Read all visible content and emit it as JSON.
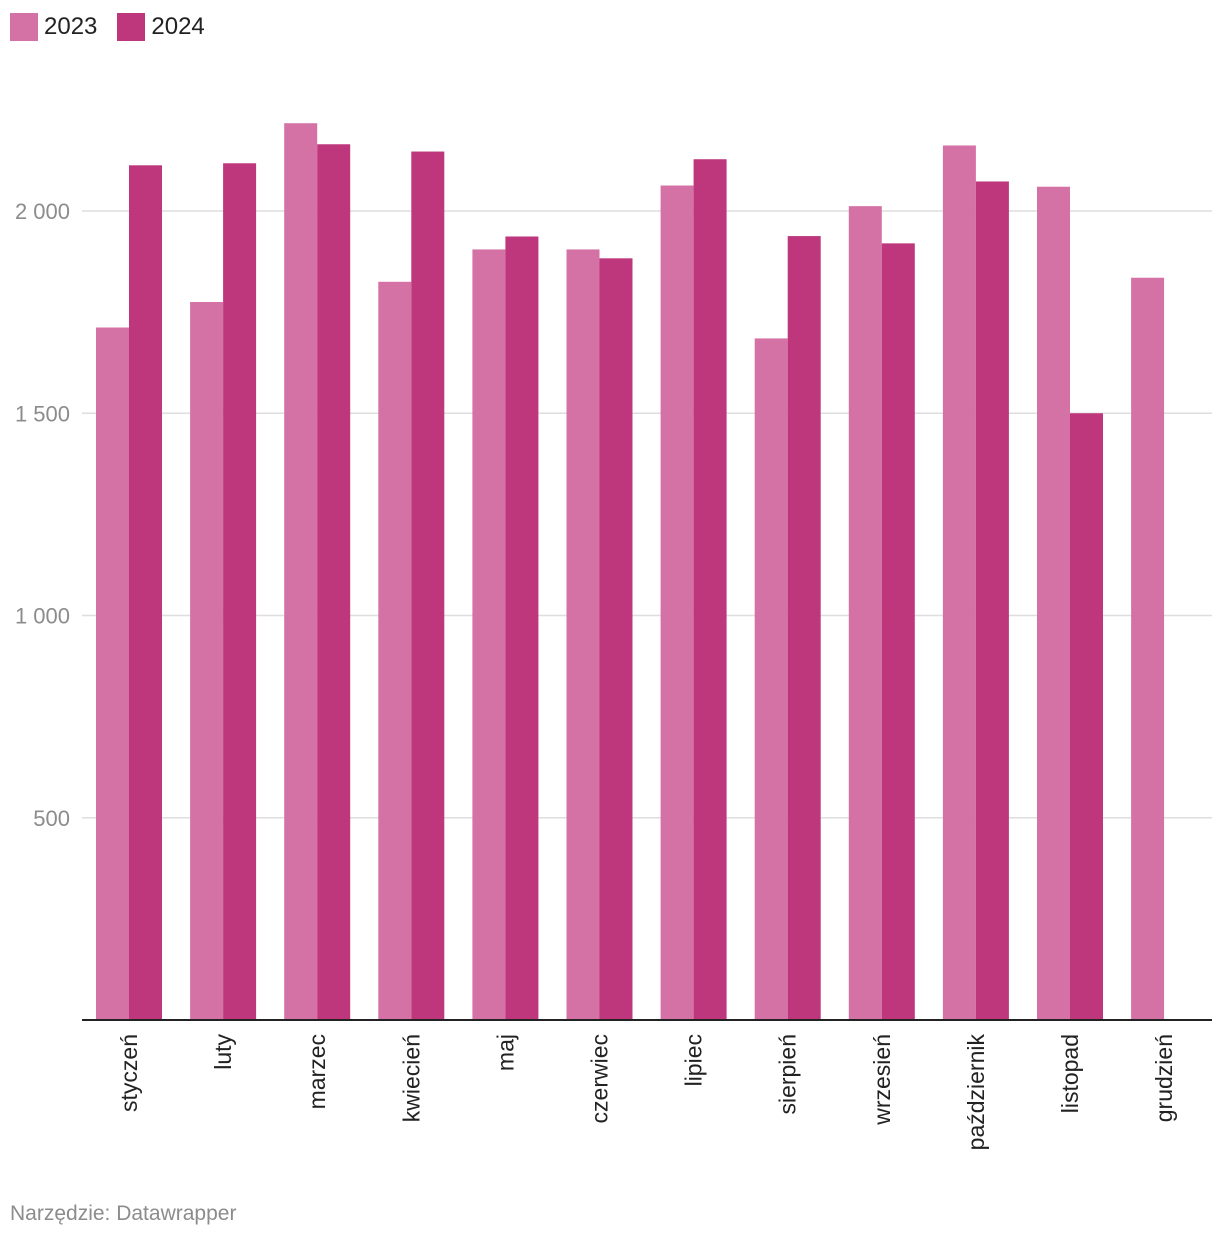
{
  "legend": [
    {
      "label": "2023",
      "color": "#d472a6"
    },
    {
      "label": "2024",
      "color": "#be377c"
    }
  ],
  "source": "Narzędzie: Datawrapper",
  "chart_data": {
    "type": "bar",
    "title": "",
    "xlabel": "",
    "ylabel": "",
    "categories": [
      "styczeń",
      "luty",
      "marzec",
      "kwiecień",
      "maj",
      "czerwiec",
      "lipiec",
      "sierpień",
      "wrzesień",
      "październik",
      "listopad",
      "grudzień"
    ],
    "series": [
      {
        "name": "2023",
        "color": "#d472a6",
        "values": [
          1712,
          1775,
          2217,
          1825,
          1905,
          1905,
          2063,
          1685,
          2012,
          2162,
          2060,
          1835
        ]
      },
      {
        "name": "2024",
        "color": "#be377c",
        "values": [
          2113,
          2118,
          2165,
          2147,
          1937,
          1883,
          2128,
          1938,
          1920,
          2073,
          1500,
          null
        ]
      }
    ],
    "ylim": [
      0,
      2300
    ],
    "yticks": [
      {
        "value": 500,
        "label": "500"
      },
      {
        "value": 1000,
        "label": "1 000"
      },
      {
        "value": 1500,
        "label": "1 500"
      },
      {
        "value": 2000,
        "label": "2 000"
      }
    ],
    "grid": true,
    "legend_position": "top-left"
  }
}
